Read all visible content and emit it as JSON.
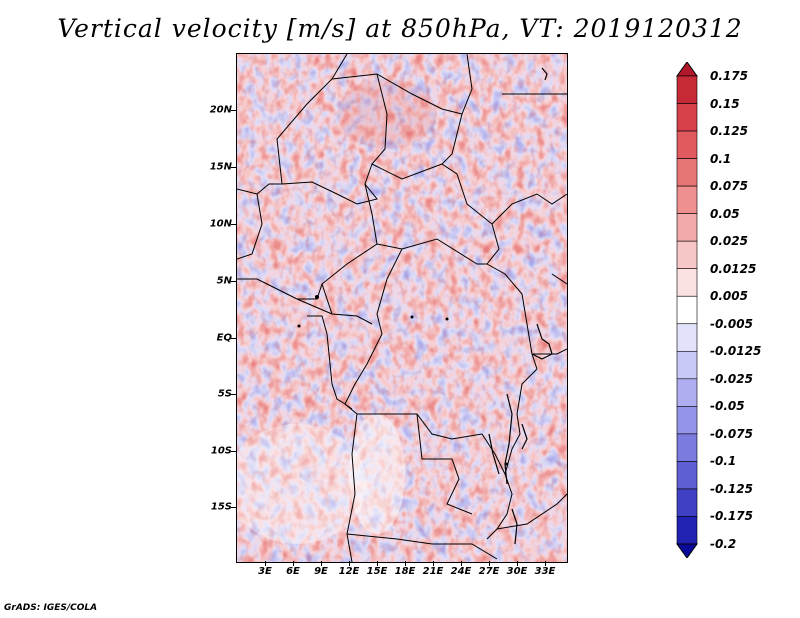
{
  "title": "Vertical velocity [m/s] at 850hPa, VT: 2019120312",
  "map": {
    "field": "vertical velocity",
    "level": "850hPa",
    "lat_labels": [
      "20N",
      "15N",
      "10N",
      "5N",
      "EQ",
      "5S",
      "10S",
      "15S"
    ],
    "lon_labels": [
      "3E",
      "6E",
      "9E",
      "12E",
      "15E",
      "18E",
      "21E",
      "24E",
      "27E",
      "30E",
      "33E"
    ],
    "lat_values": [
      20,
      15,
      10,
      5,
      0,
      -5,
      -10,
      -15
    ],
    "lon_values": [
      3,
      6,
      9,
      12,
      15,
      18,
      21,
      24,
      27,
      30,
      33
    ],
    "lon_range": [
      0,
      35
    ],
    "lat_range": [
      -20,
      25
    ]
  },
  "colorbar": {
    "labels": [
      "0.175",
      "0.15",
      "0.125",
      "0.1",
      "0.075",
      "0.05",
      "0.025",
      "0.0125",
      "0.005",
      "-0.005",
      "-0.0125",
      "-0.025",
      "-0.05",
      "-0.075",
      "-0.1",
      "-0.125",
      "-0.175",
      "-0.2"
    ],
    "colors": [
      "#b2182b",
      "#c62a36",
      "#d6404a",
      "#e15a5f",
      "#e87575",
      "#ee9090",
      "#f3aaaa",
      "#f7c6c6",
      "#fbe1e1",
      "#ffffff",
      "#e2e2fb",
      "#c8c8f6",
      "#aeaef0",
      "#9494e8",
      "#7a7adf",
      "#5f5fd3",
      "#4040c4",
      "#2121b2",
      "#0a0a9a"
    ]
  },
  "credit": "GrADS: IGES/COLA"
}
